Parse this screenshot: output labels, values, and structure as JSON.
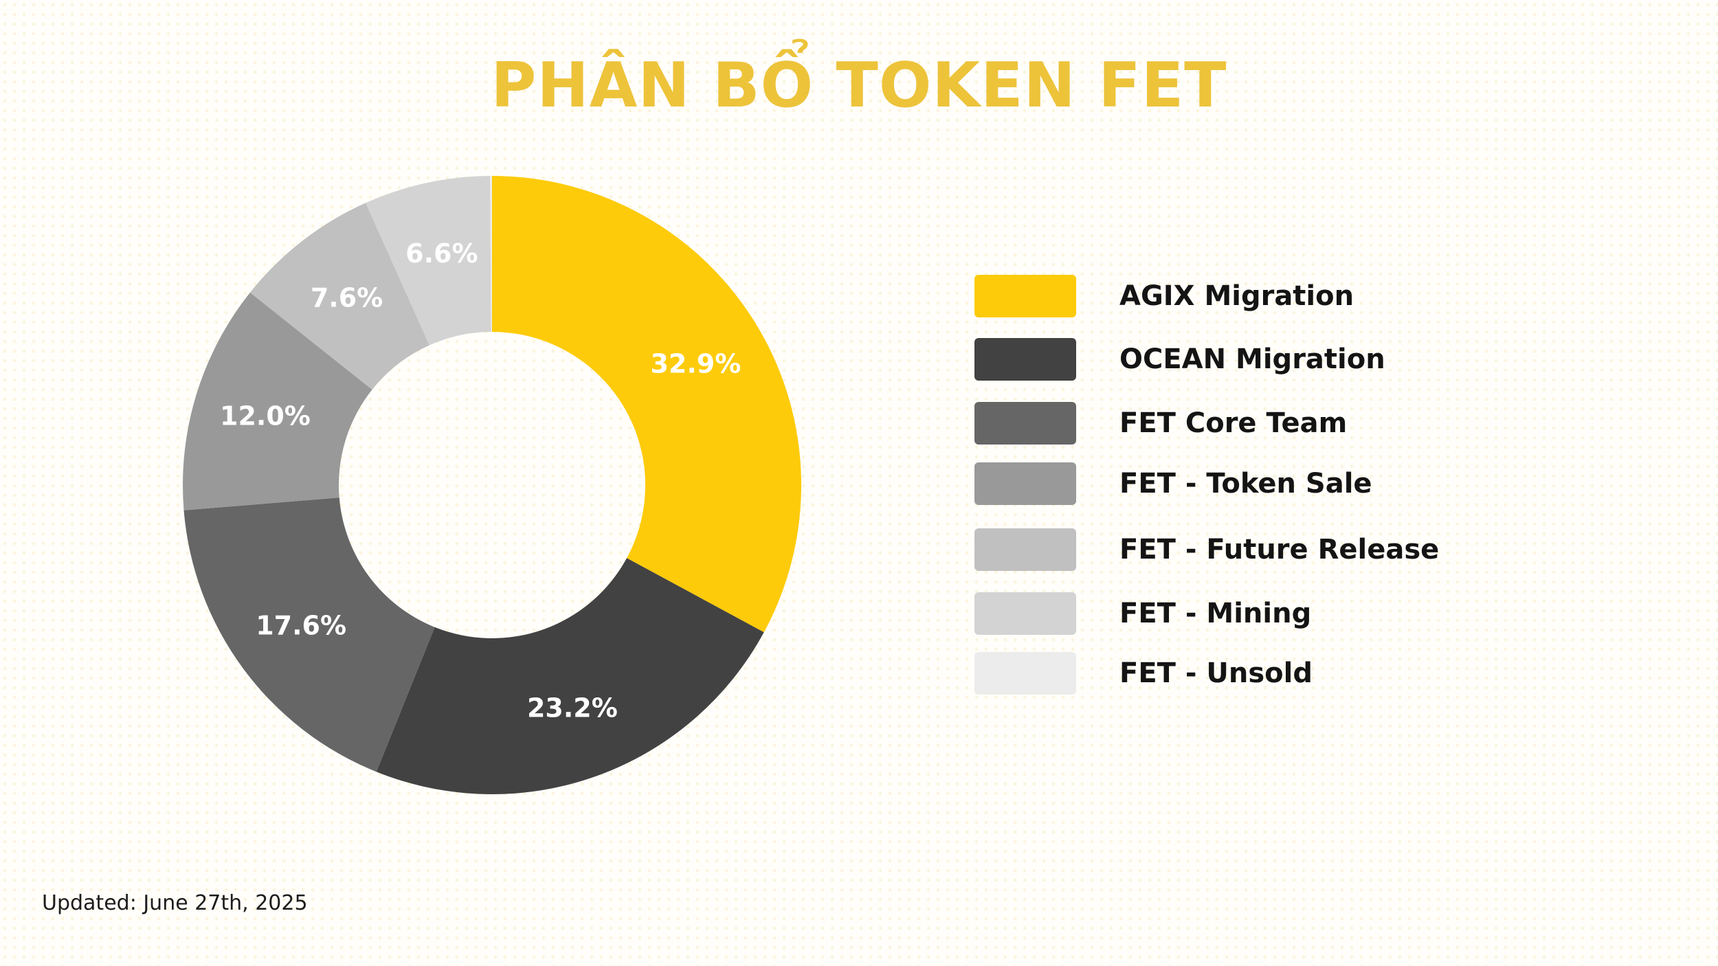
{
  "title": "PHÂN BỔ TOKEN FET",
  "footnote": "Updated: June 27th, 2025",
  "chart_data": {
    "type": "pie",
    "variant": "donut",
    "title": "PHÂN BỔ TOKEN FET",
    "legend_position": "right",
    "slices": [
      {
        "name": "AGIX Migration",
        "value": 32.9,
        "label": "32.9%",
        "color": "#fdcb0a"
      },
      {
        "name": "OCEAN Migration",
        "value": 23.2,
        "label": "23.2%",
        "color": "#424242"
      },
      {
        "name": "FET Core Team",
        "value": 17.6,
        "label": "17.6%",
        "color": "#666666"
      },
      {
        "name": "FET - Token Sale",
        "value": 12.0,
        "label": "12.0%",
        "color": "#999999"
      },
      {
        "name": "FET - Future Release",
        "value": 7.6,
        "label": "7.6%",
        "color": "#c0c0c0"
      },
      {
        "name": "FET - Mining",
        "value": 6.6,
        "label": "6.6%",
        "color": "#d3d3d3"
      },
      {
        "name": "FET - Unsold",
        "value": 0.1,
        "label": "",
        "color": "#ececec"
      }
    ]
  }
}
